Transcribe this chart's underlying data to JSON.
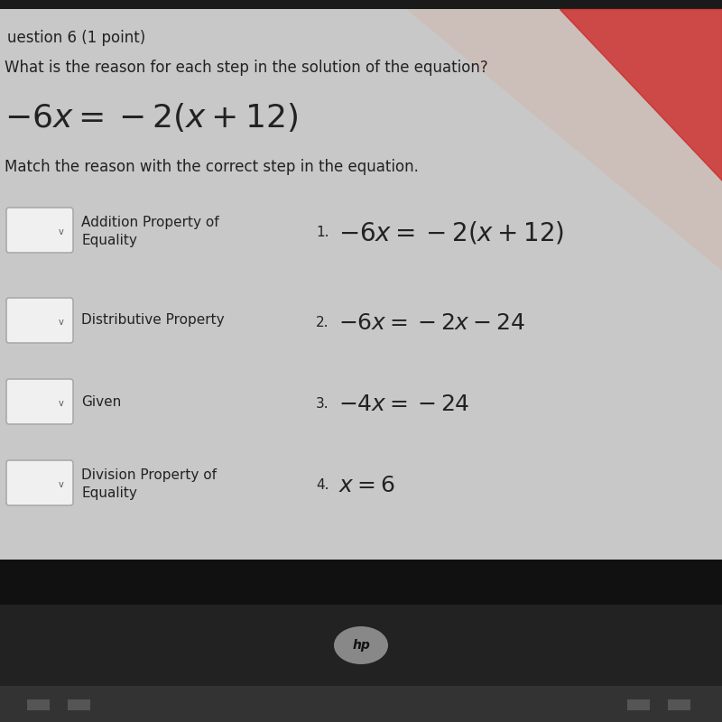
{
  "title_line1": "uestion 6 (1 point)",
  "title_line2": "What is the reason for each step in the solution of the equation?",
  "main_equation": "$-6x = -2(x + 12)$",
  "subtitle": "Match the reason with the correct step in the equation.",
  "reasons": [
    "Addition Property of\nEquality",
    "Distributive Property",
    "Given",
    "Division Property of\nEquality"
  ],
  "steps": [
    "$-6x = -2(x + 12)$",
    "$-6x = -2x - 24$",
    "$-4x = -24$",
    "$x = 6$"
  ],
  "step_numbers": [
    "1.",
    "2.",
    "3.",
    "4."
  ],
  "text_color": "#222222",
  "math_color": "#222222",
  "box_color": "#f0f0f0",
  "box_border": "#aaaaaa",
  "screen_bg": "#c8c8c8",
  "bezel_color": "#1a1a1a",
  "hp_oval_color": "#aaaaaa",
  "red_corner": "#cc2222",
  "bottom_bar_color": "#111111"
}
